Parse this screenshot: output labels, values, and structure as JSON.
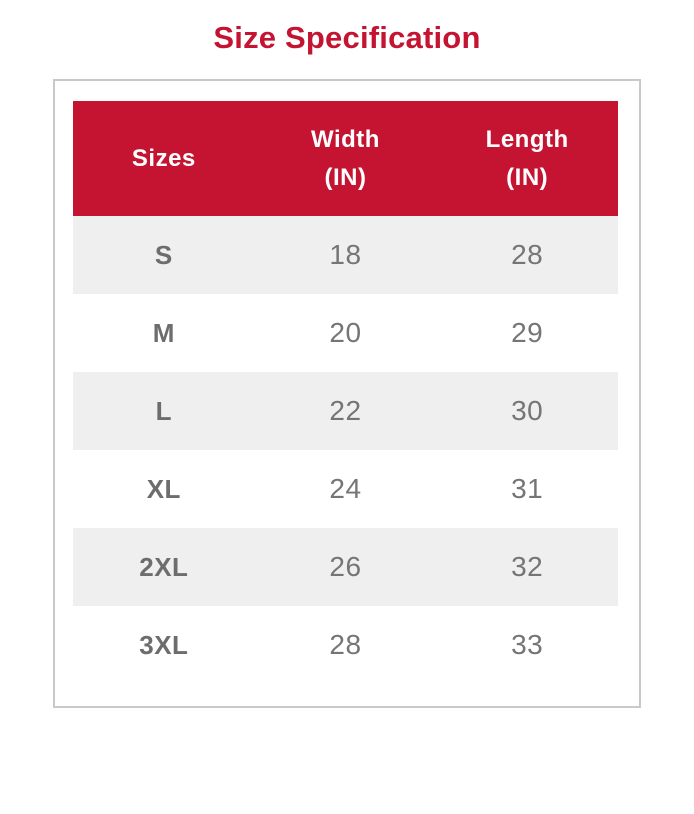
{
  "title": "Size Specification",
  "colors": {
    "accent_red": "#c41431",
    "header_text": "#ffffff",
    "alt_row_bg": "#efefef",
    "body_text": "#757575",
    "size_label_text": "#6d6d6d",
    "card_border": "#c9c9c9",
    "background": "#ffffff"
  },
  "table": {
    "columns": [
      "Sizes",
      "Width\n(IN)",
      "Length\n(IN)"
    ],
    "rows": [
      {
        "size": "S",
        "width": "18",
        "length": "28"
      },
      {
        "size": "M",
        "width": "20",
        "length": "29"
      },
      {
        "size": "L",
        "width": "22",
        "length": "30"
      },
      {
        "size": "XL",
        "width": "24",
        "length": "31"
      },
      {
        "size": "2XL",
        "width": "26",
        "length": "32"
      },
      {
        "size": "3XL",
        "width": "28",
        "length": "33"
      }
    ]
  },
  "chart_data": {
    "type": "table",
    "title": "Size Specification",
    "columns": [
      "Sizes",
      "Width (IN)",
      "Length (IN)"
    ],
    "rows": [
      [
        "S",
        18,
        28
      ],
      [
        "M",
        20,
        29
      ],
      [
        "L",
        22,
        30
      ],
      [
        "XL",
        24,
        31
      ],
      [
        "2XL",
        26,
        32
      ],
      [
        "3XL",
        28,
        33
      ]
    ]
  }
}
